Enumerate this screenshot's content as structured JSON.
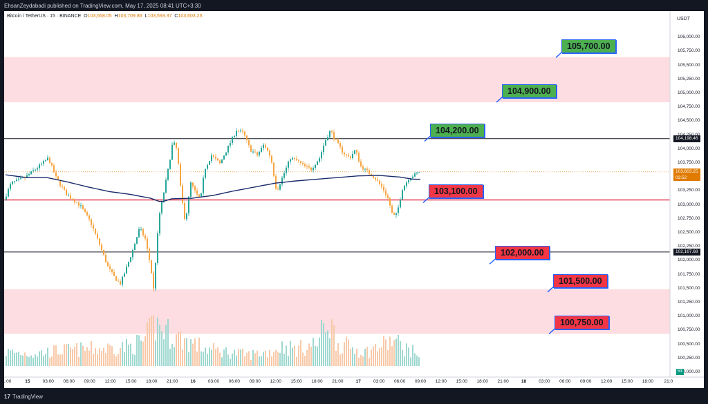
{
  "header": {
    "publisher_text": "EhsanZeydabadi published on TradingView.com, May 17, 2025 08:41 UTC+3:30"
  },
  "symbol": {
    "name": "Bitcoin / TetherUS · 15 · BINANCE",
    "open_label": "O",
    "open": "103,658.05",
    "high_label": "H",
    "high": "103,709.86",
    "low_label": "L",
    "low": "103,593.37",
    "close_label": "C",
    "close": "103,603.25"
  },
  "axis": {
    "currency": "USDT",
    "price_ticks": [
      "106,000.00",
      "105,750.00",
      "105,500.00",
      "105,250.00",
      "105,000.00",
      "104,750.00",
      "104,500.00",
      "104,250.00",
      "104,000.00",
      "103,750.00",
      "103,500.00",
      "103,250.00",
      "103,000.00",
      "102,750.00",
      "102,500.00",
      "102,250.00",
      "102,000.00",
      "101,750.00",
      "101,500.00",
      "101,250.00",
      "101,000.00",
      "100,750.00",
      "100,500.00",
      "100,250.00",
      "100,000.00"
    ],
    "time_ticks": [
      "1:00",
      "15",
      "03:00",
      "06:00",
      "09:00",
      "12:00",
      "15:00",
      "18:00",
      "21:00",
      "16",
      "03:00",
      "06:00",
      "09:00",
      "12:00",
      "15:00",
      "18:00",
      "21:00",
      "17",
      "03:00",
      "06:00",
      "09:00",
      "12:00",
      "15:00",
      "18:00",
      "21:00",
      "18",
      "03:00",
      "06:00",
      "09:00",
      "12:00",
      "15:00",
      "18:00",
      "21:0"
    ]
  },
  "price_tags": {
    "upper_line": "104,198.46",
    "last_price": "103,603.25",
    "countdown": "03:52",
    "lower_line": "102,167.68",
    "volume": "53"
  },
  "colors": {
    "up": "#26a69a",
    "down": "#f7a440",
    "zone_fill": "#fddde1",
    "support_line": "#e23a50",
    "moving_average": "#1a2b6b",
    "label_green": "#4caf50",
    "label_red": "#f23645",
    "label_border": "#2962ff"
  },
  "footer": {
    "brand": "TradingView",
    "logo_glyph": "17"
  },
  "chart_data": {
    "type": "candlestick",
    "title": "Bitcoin / TetherUS · 15 · BINANCE",
    "ylabel": "USDT",
    "ylim": [
      100000,
      106150
    ],
    "grid": false,
    "zones": [
      {
        "from": 104850,
        "to": 105660,
        "color": "#fddde1"
      },
      {
        "from": 100700,
        "to": 101500,
        "color": "#fddde1"
      }
    ],
    "horizontal_lines": [
      {
        "value": 104198.46,
        "color": "#131722"
      },
      {
        "value": 103100,
        "color": "#e23a50"
      },
      {
        "value": 102167.68,
        "color": "#131722"
      }
    ],
    "level_labels": [
      {
        "text": "105,700.00",
        "value": 105700,
        "color": "green"
      },
      {
        "text": "104,900.00",
        "value": 104900,
        "color": "green"
      },
      {
        "text": "104,200.00",
        "value": 104200,
        "color": "green"
      },
      {
        "text": "103,100.00",
        "value": 103100,
        "color": "red"
      },
      {
        "text": "102,000.00",
        "value": 102000,
        "color": "red"
      },
      {
        "text": "101,500.00",
        "value": 101500,
        "color": "red"
      },
      {
        "text": "100,750.00",
        "value": 100750,
        "color": "red"
      }
    ],
    "price_path": [
      [
        0,
        103100
      ],
      [
        10,
        103400
      ],
      [
        30,
        103500
      ],
      [
        45,
        103650
      ],
      [
        56,
        103760
      ],
      [
        64,
        103850
      ],
      [
        75,
        103500
      ],
      [
        90,
        103200
      ],
      [
        110,
        103000
      ],
      [
        125,
        102700
      ],
      [
        138,
        102300
      ],
      [
        150,
        101900
      ],
      [
        160,
        101700
      ],
      [
        168,
        101600
      ],
      [
        176,
        101850
      ],
      [
        186,
        102200
      ],
      [
        196,
        102600
      ],
      [
        204,
        102400
      ],
      [
        212,
        101900
      ],
      [
        216,
        101500
      ],
      [
        224,
        102800
      ],
      [
        232,
        103300
      ],
      [
        238,
        103700
      ],
      [
        244,
        104150
      ],
      [
        250,
        104000
      ],
      [
        256,
        103200
      ],
      [
        262,
        102700
      ],
      [
        270,
        103400
      ],
      [
        278,
        103200
      ],
      [
        284,
        103100
      ],
      [
        290,
        103650
      ],
      [
        300,
        103900
      ],
      [
        312,
        103750
      ],
      [
        326,
        104100
      ],
      [
        336,
        104350
      ],
      [
        346,
        104300
      ],
      [
        356,
        104000
      ],
      [
        366,
        103900
      ],
      [
        376,
        104100
      ],
      [
        386,
        103850
      ],
      [
        394,
        103250
      ],
      [
        404,
        103550
      ],
      [
        414,
        103850
      ],
      [
        424,
        103800
      ],
      [
        434,
        103700
      ],
      [
        444,
        103650
      ],
      [
        456,
        103850
      ],
      [
        464,
        104150
      ],
      [
        472,
        104350
      ],
      [
        480,
        104150
      ],
      [
        490,
        103950
      ],
      [
        500,
        103850
      ],
      [
        508,
        104000
      ],
      [
        516,
        103700
      ],
      [
        526,
        103600
      ],
      [
        536,
        103500
      ],
      [
        548,
        103300
      ],
      [
        556,
        103100
      ],
      [
        562,
        102800
      ],
      [
        568,
        102850
      ],
      [
        576,
        103300
      ],
      [
        586,
        103500
      ],
      [
        594,
        103550
      ],
      [
        600,
        103603.25
      ]
    ],
    "moving_average": [
      [
        0,
        103550
      ],
      [
        30,
        103500
      ],
      [
        60,
        103500
      ],
      [
        90,
        103420
      ],
      [
        120,
        103330
      ],
      [
        150,
        103250
      ],
      [
        180,
        103200
      ],
      [
        210,
        103130
      ],
      [
        225,
        103060
      ],
      [
        240,
        103120
      ],
      [
        270,
        103130
      ],
      [
        300,
        103180
      ],
      [
        330,
        103260
      ],
      [
        360,
        103330
      ],
      [
        390,
        103400
      ],
      [
        420,
        103440
      ],
      [
        450,
        103470
      ],
      [
        480,
        103500
      ],
      [
        510,
        103530
      ],
      [
        540,
        103540
      ],
      [
        570,
        103510
      ],
      [
        590,
        103470
      ],
      [
        600,
        103470
      ]
    ],
    "volume_envelope": [
      [
        0,
        0.25
      ],
      [
        40,
        0.22
      ],
      [
        80,
        0.28
      ],
      [
        120,
        0.3
      ],
      [
        150,
        0.32
      ],
      [
        180,
        0.35
      ],
      [
        200,
        0.45
      ],
      [
        215,
        0.75
      ],
      [
        240,
        0.55
      ],
      [
        260,
        0.45
      ],
      [
        290,
        0.3
      ],
      [
        320,
        0.25
      ],
      [
        350,
        0.2
      ],
      [
        380,
        0.25
      ],
      [
        400,
        0.35
      ],
      [
        420,
        0.3
      ],
      [
        450,
        0.4
      ],
      [
        465,
        0.85
      ],
      [
        480,
        0.4
      ],
      [
        520,
        0.25
      ],
      [
        560,
        0.45
      ],
      [
        580,
        0.3
      ],
      [
        600,
        0.2
      ]
    ]
  }
}
